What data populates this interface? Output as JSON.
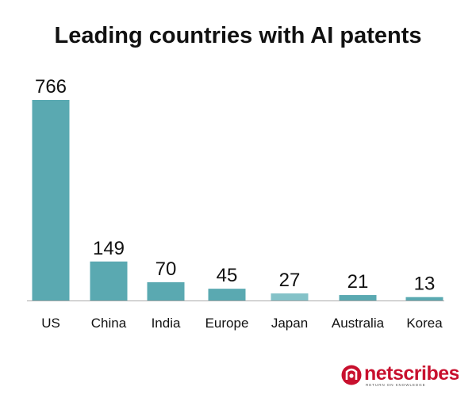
{
  "chart_data": {
    "type": "bar",
    "title": "Leading countries with AI patents",
    "categories": [
      "US",
      "China",
      "India",
      "Europe",
      "Japan",
      "Australia",
      "Korea"
    ],
    "values": [
      766,
      149,
      70,
      45,
      27,
      21,
      13
    ],
    "xlabel": "",
    "ylabel": "",
    "ylim": [
      0,
      766
    ],
    "grid": false,
    "legend": "none",
    "bar_colors": [
      "#5aa9b1",
      "#5aa9b1",
      "#5aa9b1",
      "#5aa9b1",
      "#84c2c8",
      "#5aa9b1",
      "#5aa9b1"
    ]
  },
  "logo": {
    "name": "netscribes",
    "tagline": "RETURN ON KNOWLEDGE",
    "color": "#c8102e",
    "icon": "netscribes-logo-icon"
  }
}
